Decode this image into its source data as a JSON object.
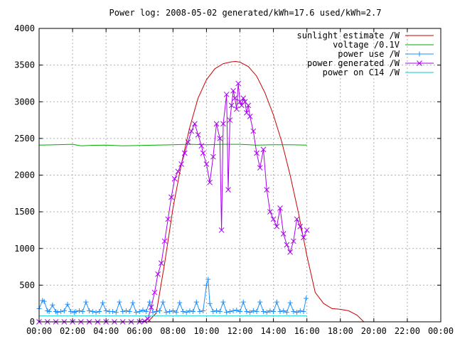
{
  "chart_data": {
    "type": "line",
    "title": "Power log: 2008-05-02 generated/kWh=17.6 used/kWh=2.7",
    "xlabel": "",
    "ylabel": "",
    "xlim": [
      0,
      24
    ],
    "ylim": [
      0,
      4000
    ],
    "grid": true,
    "legend_position": "top-right",
    "x_ticks": [
      "00:00",
      "02:00",
      "04:00",
      "06:00",
      "08:00",
      "10:00",
      "12:00",
      "14:00",
      "16:00",
      "18:00",
      "20:00",
      "22:00",
      "00:00"
    ],
    "y_ticks": [
      "0",
      "500",
      "1000",
      "1500",
      "2000",
      "2500",
      "3000",
      "3500",
      "4000"
    ],
    "series": [
      {
        "name": "sunlight estimate /W",
        "color": "#cc0000",
        "marker": "none",
        "x": [
          6.5,
          7.0,
          7.5,
          8.0,
          8.5,
          9.0,
          9.5,
          10.0,
          10.5,
          11.0,
          11.5,
          11.75,
          12.0,
          12.5,
          13.0,
          13.5,
          14.0,
          14.5,
          15.0,
          15.5,
          16.0,
          16.5,
          17.0,
          17.5,
          18.0,
          18.5,
          19.0,
          19.4
        ],
        "y": [
          0,
          120,
          800,
          1550,
          2150,
          2650,
          3050,
          3300,
          3450,
          3520,
          3545,
          3550,
          3540,
          3480,
          3350,
          3120,
          2820,
          2450,
          2000,
          1480,
          900,
          400,
          250,
          180,
          170,
          150,
          90,
          0
        ]
      },
      {
        "name": "voltage /0.1V",
        "color": "#00aa00",
        "marker": "none",
        "x": [
          0,
          1,
          2,
          2.5,
          3,
          4,
          5,
          6,
          7,
          8,
          9,
          10,
          11,
          12,
          13,
          14,
          15,
          16
        ],
        "y": [
          2410,
          2415,
          2420,
          2400,
          2405,
          2410,
          2400,
          2405,
          2410,
          2415,
          2420,
          2415,
          2420,
          2420,
          2410,
          2415,
          2415,
          2410
        ]
      },
      {
        "name": "power use /W",
        "color": "#1e90ff",
        "marker": "plus",
        "x": [
          0.0,
          0.2,
          0.3,
          0.5,
          0.6,
          0.8,
          1.0,
          1.1,
          1.3,
          1.5,
          1.7,
          1.9,
          2.1,
          2.2,
          2.4,
          2.6,
          2.8,
          3.0,
          3.2,
          3.4,
          3.6,
          3.8,
          4.0,
          4.2,
          4.4,
          4.6,
          4.8,
          5.0,
          5.2,
          5.4,
          5.6,
          5.8,
          6.0,
          6.2,
          6.4,
          6.6,
          6.8,
          7.0,
          7.2,
          7.4,
          7.6,
          7.8,
          8.0,
          8.2,
          8.4,
          8.6,
          8.8,
          9.0,
          9.2,
          9.4,
          9.6,
          9.8,
          10.0,
          10.1,
          10.2,
          10.4,
          10.6,
          10.8,
          11.0,
          11.2,
          11.4,
          11.6,
          11.8,
          12.0,
          12.2,
          12.4,
          12.6,
          12.8,
          13.0,
          13.2,
          13.4,
          13.6,
          13.8,
          14.0,
          14.2,
          14.4,
          14.6,
          14.8,
          15.0,
          15.2,
          15.4,
          15.6,
          15.8,
          15.95
        ],
        "y": [
          180,
          290,
          280,
          150,
          140,
          230,
          140,
          130,
          140,
          150,
          240,
          140,
          130,
          140,
          150,
          140,
          270,
          150,
          140,
          130,
          140,
          260,
          150,
          140,
          140,
          130,
          270,
          140,
          150,
          140,
          260,
          130,
          140,
          160,
          140,
          270,
          130,
          140,
          150,
          270,
          130,
          140,
          150,
          130,
          260,
          140,
          130,
          150,
          140,
          270,
          140,
          150,
          500,
          580,
          250,
          140,
          150,
          140,
          270,
          130,
          140,
          150,
          160,
          140,
          270,
          140,
          130,
          150,
          140,
          270,
          140,
          130,
          150,
          140,
          270,
          140,
          150,
          130,
          260,
          140,
          130,
          150,
          140,
          320
        ]
      },
      {
        "name": "power generated /W",
        "color": "#aa00ee",
        "marker": "x",
        "x": [
          0.0,
          0.5,
          1.0,
          1.5,
          2.0,
          2.5,
          3.0,
          3.5,
          4.0,
          4.5,
          5.0,
          5.5,
          6.0,
          6.3,
          6.5,
          6.7,
          6.9,
          7.1,
          7.3,
          7.5,
          7.7,
          7.9,
          8.1,
          8.3,
          8.5,
          8.7,
          8.9,
          9.1,
          9.3,
          9.5,
          9.7,
          9.8,
          10.0,
          10.2,
          10.4,
          10.6,
          10.8,
          10.9,
          11.0,
          11.2,
          11.3,
          11.4,
          11.5,
          11.6,
          11.7,
          11.8,
          11.9,
          12.0,
          12.1,
          12.2,
          12.3,
          12.4,
          12.5,
          12.6,
          12.8,
          13.0,
          13.2,
          13.4,
          13.6,
          13.8,
          14.0,
          14.2,
          14.4,
          14.6,
          14.8,
          15.0,
          15.2,
          15.4,
          15.6,
          15.8,
          16.0
        ],
        "y": [
          0,
          0,
          0,
          0,
          0,
          0,
          0,
          0,
          0,
          0,
          0,
          0,
          0,
          10,
          40,
          200,
          400,
          650,
          800,
          1100,
          1400,
          1700,
          1950,
          2050,
          2150,
          2300,
          2450,
          2600,
          2700,
          2550,
          2400,
          2300,
          2150,
          1900,
          2250,
          2700,
          2500,
          1250,
          2700,
          3100,
          1800,
          2750,
          2950,
          3150,
          3050,
          2900,
          3250,
          3000,
          2950,
          3050,
          3000,
          2850,
          2950,
          2800,
          2600,
          2300,
          2100,
          2350,
          1800,
          1500,
          1400,
          1300,
          1550,
          1200,
          1050,
          950,
          1100,
          1400,
          1300,
          1150,
          1250
        ]
      },
      {
        "name": "power on C14 /W",
        "color": "#00cccc",
        "marker": "none",
        "x": [
          0,
          16
        ],
        "y": [
          80,
          80
        ]
      }
    ]
  }
}
